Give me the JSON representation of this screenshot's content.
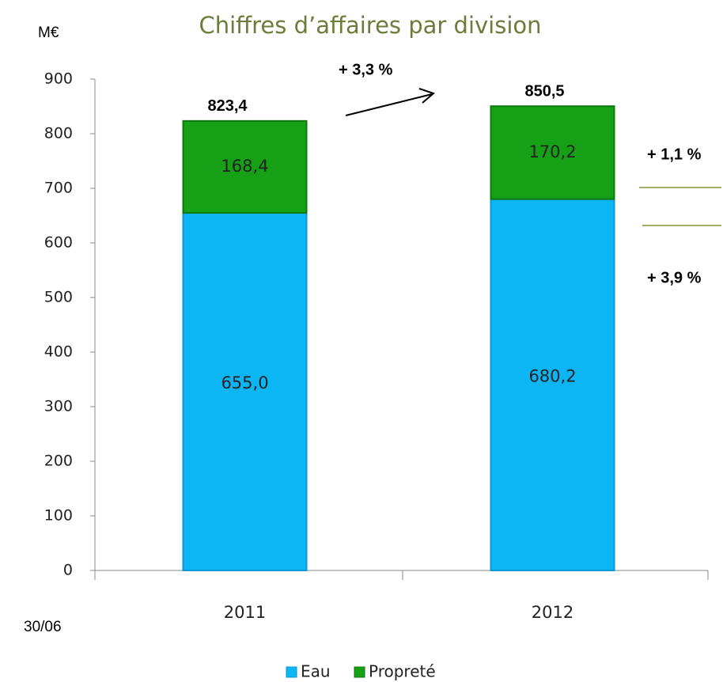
{
  "chart_data": {
    "type": "stacked_bar",
    "title": "Chiffres d’affaires par division",
    "ylabel": "M€",
    "categories": [
      "2011",
      "2012"
    ],
    "series": [
      {
        "name": "Eau",
        "color": "#0cb6f4",
        "values": [
          655.0,
          680.2
        ],
        "value_labels": [
          "655,0",
          "680,2"
        ]
      },
      {
        "name": "Propreté",
        "color": "#16a016",
        "values": [
          168.4,
          170.2
        ],
        "value_labels": [
          "168,4",
          "170,2"
        ]
      }
    ],
    "totals": [
      823.4,
      850.5
    ],
    "total_labels": [
      "823,4",
      "850,5"
    ],
    "ylim": [
      0,
      900
    ],
    "yticks": [
      0,
      100,
      200,
      300,
      400,
      500,
      600,
      700,
      800,
      900
    ],
    "annotations": [
      "+ 3,3 %",
      "+ 1,1 %",
      "+ 3,9 %"
    ],
    "footnote": "30/06",
    "legend": "bottom"
  }
}
